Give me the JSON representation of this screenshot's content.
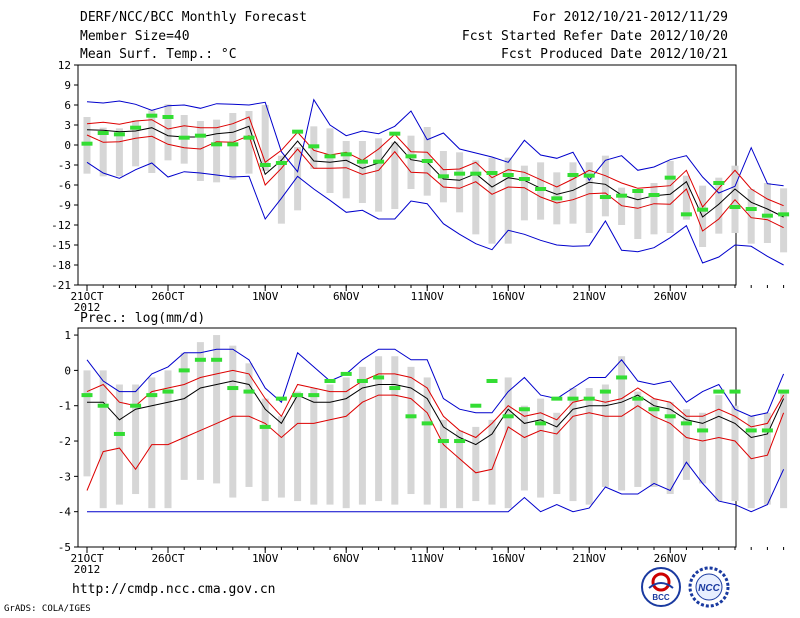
{
  "header": {
    "title": "DERF/NCC/BCC Monthly Forecast",
    "member_size": "Member Size=40",
    "variable": "Mean Surf. Temp.: °C",
    "period": "For 2012/10/21-2012/11/29",
    "started": "Fcst Started Refer Date 2012/10/20",
    "produced": "Fcst Produced Date 2012/10/21"
  },
  "footer": {
    "url": "http://cmdp.ncc.cma.gov.cn",
    "credit": "GrADS: COLA/IGES"
  },
  "logos": {
    "bcc": "BCC",
    "ncc": "NCC"
  },
  "colors": {
    "max_min": "#0000cc",
    "spread": "#dd0000",
    "mean": "#000000",
    "member": "#33dd33",
    "box": "#d6d6d6"
  },
  "chart_data": [
    {
      "type": "line",
      "title": "Mean Surf. Temp.: °C",
      "x_tick_labels": [
        "21OCT",
        "26OCT",
        "1NOV",
        "6NOV",
        "11NOV",
        "16NOV",
        "21NOV",
        "26NOV"
      ],
      "x_year_label": "2012",
      "y_ticks": [
        -21,
        -18,
        -15,
        -12,
        -9,
        -6,
        -3,
        0,
        3,
        6,
        9,
        12
      ],
      "ylim": [
        -21,
        12
      ],
      "series": [
        {
          "name": "max",
          "color": "blue",
          "values": [
            6.5,
            6.3,
            6.6,
            6.1,
            5.2,
            5.9,
            6,
            5.5,
            6.2,
            6.1,
            6,
            6.4,
            -1,
            -4,
            6.8,
            3,
            1.4,
            2.1,
            1.7,
            2.8,
            5.1,
            0.8,
            1.8,
            -0.6,
            -1.2,
            -1.8,
            -2.6,
            0.7,
            -1.5,
            -2,
            -1.1,
            -5.3,
            -2.3,
            -1.6,
            -3.8,
            -3.3,
            -2.2,
            -1.6,
            -4.8,
            -7.2,
            -6.2,
            -0.4,
            -5.8,
            -6.1
          ]
        },
        {
          "name": "upper",
          "color": "red",
          "values": [
            3.2,
            3.4,
            3.1,
            3.6,
            3.8,
            2.4,
            2.9,
            2.6,
            2.6,
            3.2,
            4.2,
            -2.6,
            -0.8,
            1.9,
            -0.8,
            -1.5,
            -1.1,
            -2.3,
            -0.6,
            1.6,
            -1,
            -1.1,
            -3.7,
            -3.6,
            -2.6,
            -4.9,
            -3.7,
            -4.1,
            -5.2,
            -6.3,
            -5.1,
            -3.8,
            -4.6,
            -5.7,
            -6.5,
            -6.3,
            -6.1,
            -3.8,
            -9.3,
            -6.5,
            -3.8,
            -6.6,
            -8.1,
            -9.1
          ]
        },
        {
          "name": "mean",
          "color": "black",
          "values": [
            2.3,
            2.2,
            2,
            2.1,
            2.6,
            1.4,
            1.2,
            1.2,
            1.7,
            1.9,
            2.8,
            -4.4,
            -2.3,
            0.6,
            -2.4,
            -2.6,
            -2.3,
            -3.5,
            -2.7,
            0.5,
            -2.2,
            -2.6,
            -5.1,
            -5.3,
            -4.3,
            -6.3,
            -4.9,
            -5.3,
            -6.5,
            -7.4,
            -6.8,
            -5.6,
            -5.9,
            -7.5,
            -8.2,
            -7.6,
            -7.4,
            -5.5,
            -10.8,
            -8.9,
            -6.6,
            -8.6,
            -9.6,
            -10.8
          ]
        },
        {
          "name": "lower",
          "color": "red",
          "values": [
            1.5,
            0.4,
            0.5,
            1,
            1.3,
            0.1,
            -0.4,
            -0.6,
            0.5,
            0.4,
            1.4,
            -6,
            -3.5,
            -0.6,
            -3.5,
            -3.5,
            -3.4,
            -4.4,
            -3.8,
            -1,
            -4.1,
            -4.2,
            -6.3,
            -6.5,
            -5.5,
            -7.4,
            -6.3,
            -6.4,
            -7.8,
            -8.7,
            -8.2,
            -7.3,
            -7.2,
            -9.1,
            -9.5,
            -8.8,
            -8.9,
            -6.6,
            -12.9,
            -11.1,
            -8.2,
            -10.9,
            -11.2,
            -12.4
          ]
        },
        {
          "name": "min",
          "color": "blue",
          "values": [
            -2.6,
            -4.2,
            -5,
            -3.7,
            -2.7,
            -4.8,
            -4,
            -4.2,
            -4.5,
            -4.8,
            -4.7,
            -11.1,
            -8,
            -4.7,
            -6.6,
            -8.3,
            -10.1,
            -9.8,
            -11.1,
            -11.1,
            -8.4,
            -8.8,
            -11.8,
            -13.4,
            -14.8,
            -15.7,
            -12.8,
            -13.4,
            -14.3,
            -15,
            -15.2,
            -15.1,
            -11.4,
            -15.8,
            -16,
            -15.4,
            -13.9,
            -12.1,
            -17.7,
            -16.8,
            -15,
            -15.2,
            -16.7,
            -18
          ]
        },
        {
          "name": "member",
          "color": "green",
          "values": [
            0.2,
            1.8,
            1.6,
            2.6,
            4.4,
            4.2,
            1.1,
            1.4,
            0.1,
            0.1,
            1.1,
            -3,
            -2.7,
            2,
            -0.2,
            -1.7,
            -1.4,
            -2.5,
            -2.5,
            1.7,
            -1.7,
            -2.4,
            -4.7,
            -4.3,
            -4.3,
            -4.2,
            -4.5,
            -5.1,
            -6.6,
            -8,
            -4.5,
            -4.6,
            -7.8,
            -7.6,
            -6.9,
            -7.5,
            -4.9,
            -10.4,
            -9.7,
            -5.7,
            -9.3,
            -9.6,
            -10.6,
            -10.4
          ]
        },
        {
          "name": "box_high",
          "values": [
            4.2,
            2.6,
            2.5,
            3.7,
            5.2,
            6.1,
            4.5,
            3.6,
            3.8,
            4.8,
            5.1,
            6,
            -1.6,
            -0.3,
            2.8,
            2.5,
            0.6,
            0.6,
            1,
            0.4,
            1.4,
            2.7,
            -0.9,
            -1.1,
            -2.3,
            -1.9,
            -1.9,
            -3.1,
            -2.6,
            -4.1,
            -2.6,
            -2.6,
            -1.6,
            -6.4,
            -6.8,
            -5.7,
            -2.4,
            -4.6,
            -6.1,
            -4.9,
            -3.1,
            -6.6,
            -5.7,
            -6.5
          ]
        },
        {
          "name": "box_low",
          "values": [
            -4.3,
            -4.7,
            -4.7,
            -3.2,
            -4.2,
            -2.3,
            -2.8,
            -5.4,
            -5.6,
            -5.2,
            -4.3,
            -3.9,
            -11.8,
            -9.8,
            -3.6,
            -7.2,
            -8,
            -8.7,
            -10,
            -9.6,
            -6.6,
            -7.6,
            -8.6,
            -10.1,
            -13.4,
            -14.8,
            -14.8,
            -11.3,
            -11.2,
            -11.9,
            -11.8,
            -13.2,
            -10.7,
            -12,
            -14.1,
            -13.4,
            -13.2,
            -11.2,
            -15.3,
            -13.3,
            -13.2,
            -14.8,
            -14.7,
            -16.1
          ]
        }
      ]
    },
    {
      "type": "line",
      "title": "Prec.: log(mm/d)",
      "x_tick_labels": [
        "21OCT",
        "26OCT",
        "1NOV",
        "6NOV",
        "11NOV",
        "16NOV",
        "21NOV",
        "26NOV"
      ],
      "x_year_label": "2012",
      "y_ticks": [
        -5,
        -4,
        -3,
        -2,
        -1,
        0,
        1
      ],
      "ylim": [
        -5,
        1.2
      ],
      "series": [
        {
          "name": "max",
          "color": "blue",
          "values": [
            0.3,
            -0.3,
            -0.6,
            -0.6,
            -0.1,
            0.1,
            0.5,
            0.5,
            0.6,
            0.6,
            0.3,
            -0.5,
            -0.9,
            0.5,
            0.1,
            -0.3,
            -0.1,
            0.3,
            0.6,
            0.6,
            0.3,
            0.3,
            -0.8,
            -1.1,
            -1.2,
            -1.2,
            -0.6,
            -0.2,
            -0.7,
            -0.8,
            -0.5,
            -0.2,
            -0.2,
            0.3,
            -0.3,
            -0.4,
            -0.3,
            -0.9,
            -0.6,
            -0.4,
            -1.1,
            -1.3,
            -1.2,
            -0.1
          ]
        },
        {
          "name": "upper",
          "color": "red",
          "values": [
            -0.6,
            -0.4,
            -0.9,
            -1,
            -0.6,
            -0.5,
            -0.4,
            -0.2,
            -0.1,
            0,
            -0.1,
            -0.8,
            -1.3,
            -0.4,
            -0.5,
            -0.6,
            -0.6,
            -0.3,
            -0.1,
            -0.1,
            -0.2,
            -0.5,
            -1.3,
            -1.7,
            -1.9,
            -1.5,
            -1,
            -1.3,
            -1.2,
            -1.4,
            -0.9,
            -0.8,
            -0.9,
            -0.8,
            -0.5,
            -0.8,
            -0.9,
            -1.3,
            -1.3,
            -1.1,
            -1.3,
            -1.6,
            -1.5,
            -0.7
          ]
        },
        {
          "name": "mean",
          "color": "black",
          "values": [
            -0.9,
            -0.9,
            -1.4,
            -1.1,
            -1,
            -0.9,
            -0.8,
            -0.5,
            -0.4,
            -0.3,
            -0.4,
            -1.1,
            -1.5,
            -0.7,
            -0.9,
            -0.9,
            -0.8,
            -0.5,
            -0.4,
            -0.4,
            -0.5,
            -0.8,
            -1.6,
            -1.9,
            -2.1,
            -1.8,
            -1.1,
            -1.5,
            -1.4,
            -1.6,
            -1.1,
            -1,
            -1,
            -0.9,
            -0.7,
            -1,
            -1.1,
            -1.4,
            -1.5,
            -1.3,
            -1.5,
            -1.9,
            -1.8,
            -0.8
          ]
        },
        {
          "name": "lower",
          "color": "red",
          "values": [
            -3.4,
            -2.3,
            -2.2,
            -2.8,
            -2.1,
            -2.1,
            -1.9,
            -1.7,
            -1.5,
            -1.3,
            -1.3,
            -1.5,
            -1.9,
            -1.5,
            -1.5,
            -1.4,
            -1.3,
            -0.9,
            -0.7,
            -0.7,
            -0.8,
            -1.2,
            -2.1,
            -2.5,
            -2.9,
            -2.8,
            -1.6,
            -1.9,
            -1.7,
            -1.8,
            -1.3,
            -1.2,
            -1.3,
            -1.3,
            -1.0,
            -1.3,
            -1.5,
            -1.9,
            -2.0,
            -1.9,
            -2.0,
            -2.5,
            -2.4,
            -1.2
          ]
        },
        {
          "name": "min",
          "color": "blue",
          "values": [
            -4,
            -4,
            -4,
            -4,
            -4,
            -4,
            -4,
            -4,
            -4,
            -4,
            -4,
            -4,
            -4,
            -4,
            -4,
            -4,
            -4,
            -4,
            -4,
            -4,
            -4,
            -4,
            -4,
            -4,
            -4,
            -4,
            -4,
            -3.6,
            -4,
            -3.8,
            -4,
            -3.9,
            -3.3,
            -3.5,
            -3.5,
            -3.2,
            -3.4,
            -2.6,
            -3.2,
            -3.7,
            -3.8,
            -4,
            -3.8,
            -2.8
          ]
        },
        {
          "name": "member",
          "color": "green",
          "values": [
            -0.7,
            -1.0,
            -1.8,
            -1.0,
            -0.7,
            -0.6,
            0.0,
            0.3,
            0.3,
            -0.5,
            -0.6,
            -1.6,
            -0.8,
            -0.7,
            -0.7,
            -0.3,
            -0.1,
            -0.3,
            -0.2,
            -0.5,
            -1.3,
            -1.5,
            -2.0,
            -2.0,
            -1.0,
            -0.3,
            -1.3,
            -1.1,
            -1.5,
            -0.8,
            -0.8,
            -0.8,
            -0.6,
            -0.2,
            -0.8,
            -1.1,
            -1.3,
            -1.5,
            -1.7,
            -0.6,
            -0.6,
            -1.7,
            -1.7,
            -0.6
          ]
        },
        {
          "name": "box_high",
          "values": [
            0,
            0,
            -0.4,
            -0.4,
            -0.2,
            0,
            0.5,
            0.8,
            1,
            0.7,
            0.2,
            -0.8,
            -1.3,
            -0.6,
            -0.5,
            -0.4,
            -0.2,
            0.1,
            0.4,
            0.4,
            0.1,
            -0.2,
            -1.4,
            -1.7,
            -1.6,
            -1.4,
            -0.2,
            -1.0,
            -0.8,
            -1.2,
            -0.5,
            -0.5,
            -0.4,
            0.4,
            -0.6,
            -0.8,
            -0.9,
            -1.1,
            -1.2,
            -0.7,
            -1.0,
            -1.3,
            -1.2,
            -0.6
          ]
        },
        {
          "name": "box_low",
          "values": [
            -3.0,
            -3.9,
            -3.8,
            -3.5,
            -3.9,
            -3.9,
            -3.1,
            -3.1,
            -3.2,
            -3.6,
            -3.3,
            -3.7,
            -3.6,
            -3.7,
            -3.8,
            -3.8,
            -3.9,
            -3.8,
            -3.7,
            -3.8,
            -3.5,
            -3.8,
            -3.9,
            -3.9,
            -3.7,
            -3.8,
            -3.9,
            -3.4,
            -3.6,
            -3.5,
            -3.7,
            -3.8,
            -3.3,
            -3.4,
            -3.3,
            -3.3,
            -3.5,
            -3.1,
            -3.2,
            -3.7,
            -3.7,
            -3.9,
            -3.8,
            -3.9
          ]
        }
      ]
    }
  ]
}
